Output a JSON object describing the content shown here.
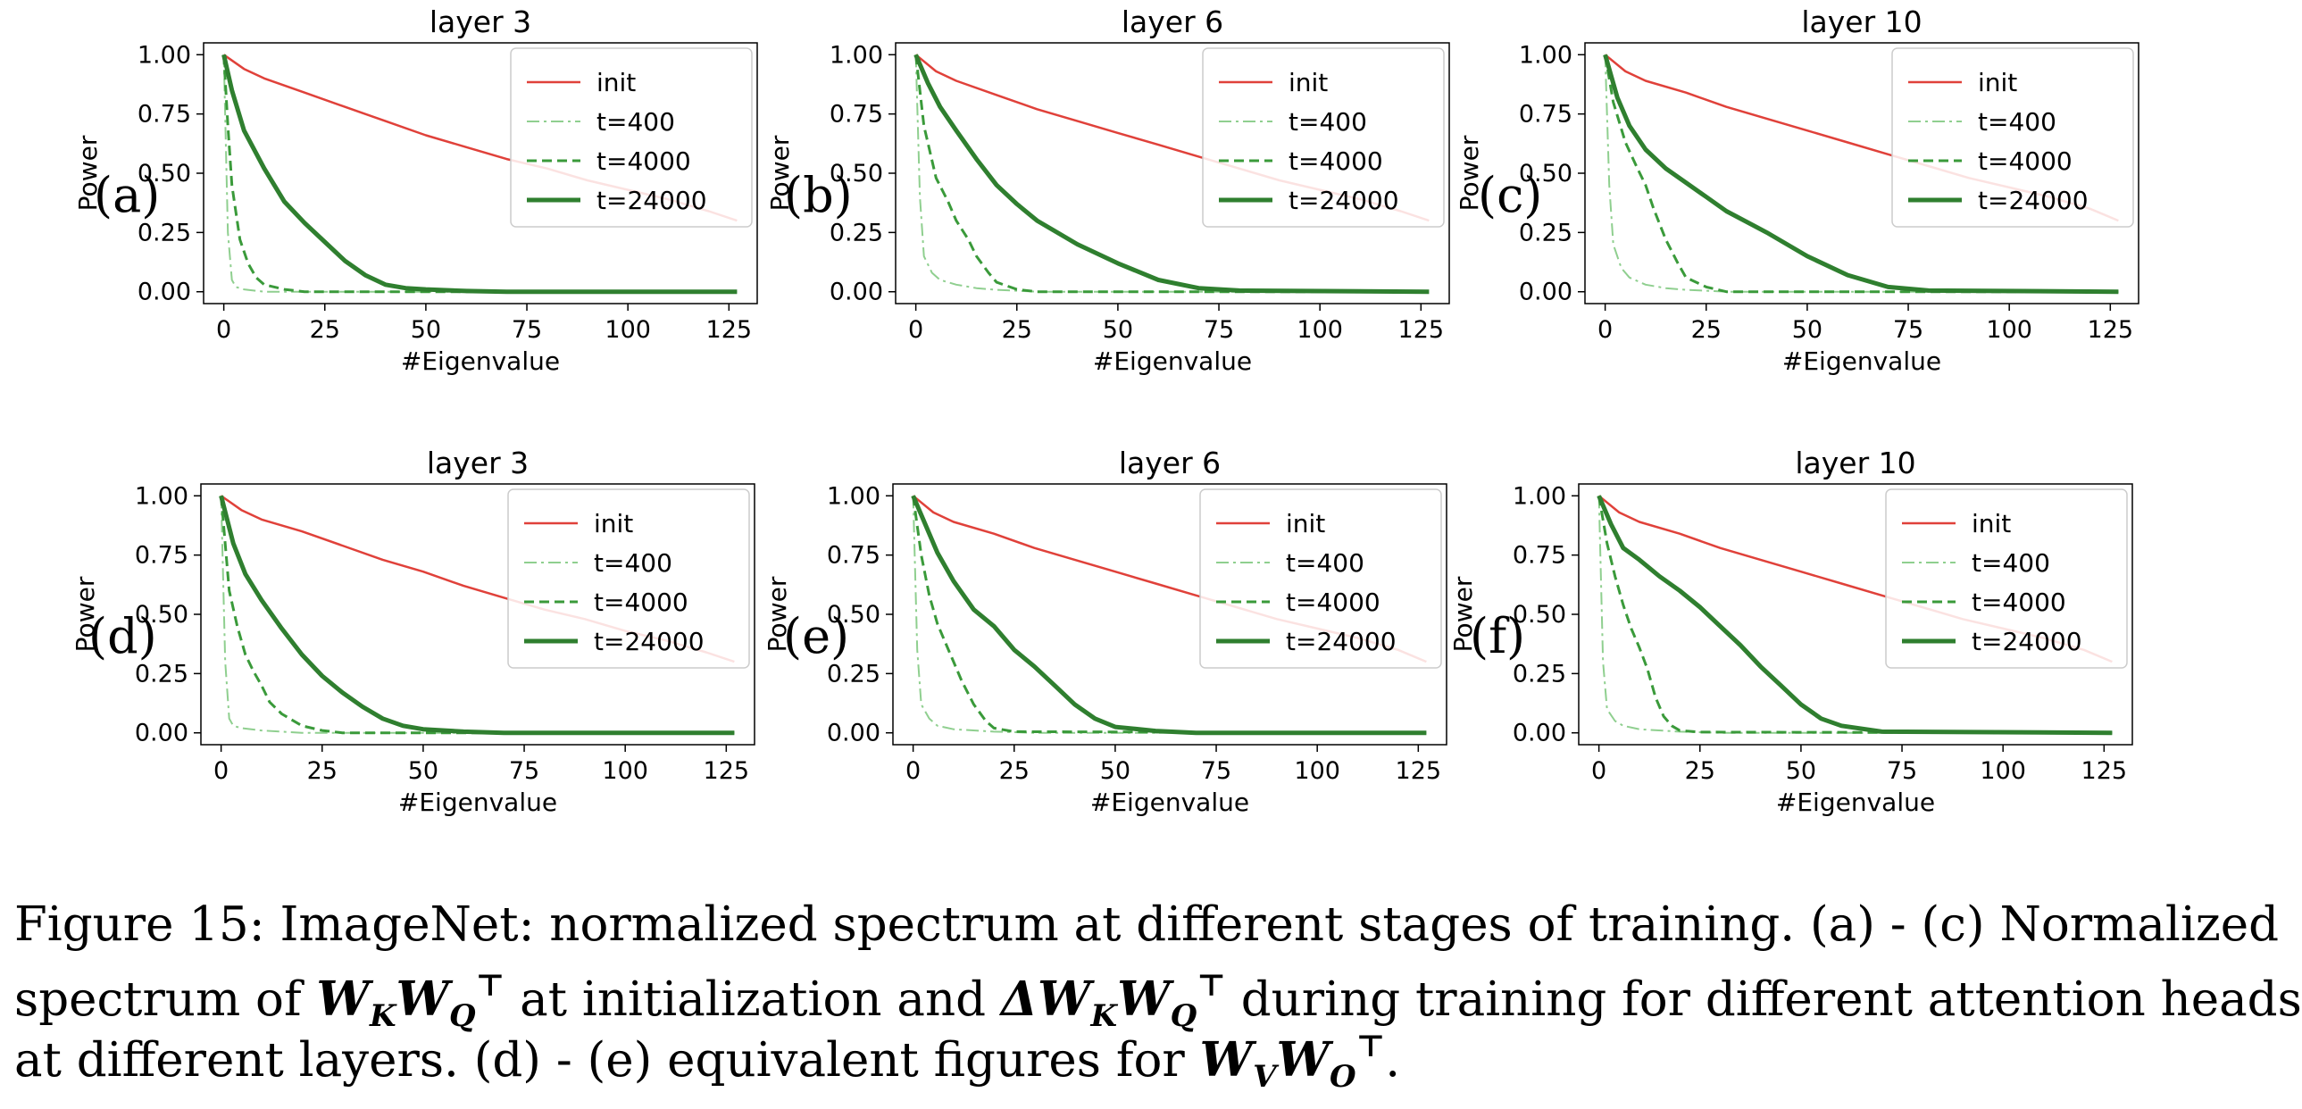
{
  "figure": {
    "panel_tags": [
      "(a)",
      "(b)",
      "(c)",
      "(d)",
      "(e)",
      "(f)"
    ],
    "caption": {
      "line1": "Figure 15: ImageNet: normalized spectrum at different stages of training. (a) - (c) Normalized",
      "line2_a": "spectrum of ",
      "line2_m1": "W",
      "line2_m1_sub": "K",
      "line2_m2": "W",
      "line2_m2_sub": "Q",
      "line2_m2_sup": "⊤",
      "line2_b": " at initialization and ",
      "line2_m3": "ΔW",
      "line2_m3_sub": "K",
      "line2_m4": "W",
      "line2_m4_sub": "Q",
      "line2_m4_sup": "⊤",
      "line2_c": " during training for different attention heads",
      "line3_a": "at different layers. (d) - (e) equivalent figures for ",
      "line3_m1": "W",
      "line3_m1_sub": "V",
      "line3_m2": "W",
      "line3_m2_sub": "O",
      "line3_m2_sup": "⊤",
      "line3_b": "."
    }
  },
  "colors": {
    "init": "#e0413a",
    "t400": "#8fcf8f",
    "t4000": "#3a9a3a",
    "t24000": "#2f7f2f"
  },
  "chart_data": [
    {
      "type": "line",
      "title": "layer 3",
      "xlabel": "#Eigenvalue",
      "ylabel": "Power",
      "xlim": [
        -5,
        132
      ],
      "ylim": [
        -0.05,
        1.05
      ],
      "xticks": [
        0,
        25,
        50,
        75,
        100,
        125
      ],
      "yticks": [
        "0.00",
        "0.25",
        "0.50",
        "0.75",
        "1.00"
      ],
      "legend_position": "upper right",
      "series": [
        {
          "name": "init",
          "x": [
            0,
            5,
            10,
            20,
            30,
            40,
            50,
            60,
            70,
            80,
            90,
            100,
            110,
            120,
            127
          ],
          "values": [
            1.0,
            0.94,
            0.9,
            0.84,
            0.78,
            0.72,
            0.66,
            0.61,
            0.56,
            0.52,
            0.47,
            0.43,
            0.39,
            0.34,
            0.3
          ]
        },
        {
          "name": "t=400",
          "x": [
            0,
            1,
            2,
            3,
            5,
            10,
            20,
            127
          ],
          "values": [
            1.0,
            0.25,
            0.05,
            0.02,
            0.01,
            0.0,
            0.0,
            0.0
          ]
        },
        {
          "name": "t=4000",
          "x": [
            0,
            1,
            2,
            4,
            6,
            8,
            10,
            15,
            20,
            30,
            127
          ],
          "values": [
            1.0,
            0.7,
            0.45,
            0.22,
            0.12,
            0.06,
            0.03,
            0.01,
            0.0,
            0.0,
            0.0
          ]
        },
        {
          "name": "t=24000",
          "x": [
            0,
            2,
            5,
            10,
            15,
            20,
            25,
            30,
            35,
            40,
            45,
            50,
            60,
            70,
            127
          ],
          "values": [
            1.0,
            0.85,
            0.68,
            0.52,
            0.38,
            0.29,
            0.21,
            0.13,
            0.07,
            0.03,
            0.015,
            0.01,
            0.003,
            0.0,
            0.0
          ]
        }
      ]
    },
    {
      "type": "line",
      "title": "layer 6",
      "xlabel": "#Eigenvalue",
      "ylabel": "Power",
      "xlim": [
        -5,
        132
      ],
      "ylim": [
        -0.05,
        1.05
      ],
      "xticks": [
        0,
        25,
        50,
        75,
        100,
        125
      ],
      "yticks": [
        "0.00",
        "0.25",
        "0.50",
        "0.75",
        "1.00"
      ],
      "legend_position": "upper right",
      "series": [
        {
          "name": "init",
          "x": [
            0,
            5,
            10,
            20,
            30,
            40,
            50,
            60,
            70,
            80,
            90,
            100,
            110,
            120,
            127
          ],
          "values": [
            1.0,
            0.93,
            0.89,
            0.83,
            0.77,
            0.72,
            0.67,
            0.62,
            0.57,
            0.52,
            0.47,
            0.43,
            0.39,
            0.34,
            0.3
          ]
        },
        {
          "name": "t=400",
          "x": [
            0,
            1,
            2,
            4,
            6,
            10,
            15,
            20,
            30,
            127
          ],
          "values": [
            1.0,
            0.4,
            0.15,
            0.08,
            0.05,
            0.03,
            0.015,
            0.008,
            0.0,
            0.0
          ]
        },
        {
          "name": "t=4000",
          "x": [
            0,
            2,
            5,
            8,
            10,
            13,
            15,
            18,
            20,
            25,
            30,
            127
          ],
          "values": [
            1.0,
            0.7,
            0.48,
            0.38,
            0.3,
            0.22,
            0.15,
            0.08,
            0.04,
            0.01,
            0.0,
            0.0
          ]
        },
        {
          "name": "t=24000",
          "x": [
            0,
            3,
            6,
            10,
            15,
            20,
            25,
            30,
            40,
            50,
            60,
            70,
            80,
            127
          ],
          "values": [
            1.0,
            0.88,
            0.78,
            0.68,
            0.56,
            0.45,
            0.37,
            0.3,
            0.2,
            0.12,
            0.05,
            0.015,
            0.005,
            0.0
          ]
        }
      ]
    },
    {
      "type": "line",
      "title": "layer 10",
      "xlabel": "#Eigenvalue",
      "ylabel": "Power",
      "xlim": [
        -5,
        132
      ],
      "ylim": [
        -0.05,
        1.05
      ],
      "xticks": [
        0,
        25,
        50,
        75,
        100,
        125
      ],
      "yticks": [
        "0.00",
        "0.25",
        "0.50",
        "0.75",
        "1.00"
      ],
      "legend_position": "upper right",
      "series": [
        {
          "name": "init",
          "x": [
            0,
            5,
            10,
            20,
            30,
            40,
            50,
            60,
            70,
            80,
            90,
            100,
            110,
            120,
            127
          ],
          "values": [
            1.0,
            0.93,
            0.89,
            0.84,
            0.78,
            0.73,
            0.68,
            0.63,
            0.58,
            0.53,
            0.48,
            0.44,
            0.4,
            0.35,
            0.3
          ]
        },
        {
          "name": "t=400",
          "x": [
            0,
            1,
            2,
            4,
            6,
            10,
            15,
            20,
            30,
            127
          ],
          "values": [
            1.0,
            0.45,
            0.2,
            0.1,
            0.06,
            0.03,
            0.015,
            0.008,
            0.0,
            0.0
          ]
        },
        {
          "name": "t=4000",
          "x": [
            0,
            2,
            5,
            8,
            10,
            12,
            15,
            18,
            20,
            25,
            30,
            127
          ],
          "values": [
            1.0,
            0.8,
            0.63,
            0.52,
            0.45,
            0.35,
            0.22,
            0.12,
            0.06,
            0.02,
            0.0,
            0.0
          ]
        },
        {
          "name": "t=24000",
          "x": [
            0,
            3,
            6,
            10,
            15,
            20,
            25,
            30,
            40,
            50,
            60,
            70,
            80,
            127
          ],
          "values": [
            1.0,
            0.82,
            0.7,
            0.6,
            0.52,
            0.46,
            0.4,
            0.34,
            0.25,
            0.15,
            0.07,
            0.02,
            0.005,
            0.0
          ]
        }
      ]
    },
    {
      "type": "line",
      "title": "layer 3",
      "xlabel": "#Eigenvalue",
      "ylabel": "Power",
      "xlim": [
        -5,
        132
      ],
      "ylim": [
        -0.05,
        1.05
      ],
      "xticks": [
        0,
        25,
        50,
        75,
        100,
        125
      ],
      "yticks": [
        "0.00",
        "0.25",
        "0.50",
        "0.75",
        "1.00"
      ],
      "legend_position": "upper right",
      "series": [
        {
          "name": "init",
          "x": [
            0,
            5,
            10,
            20,
            30,
            40,
            50,
            60,
            70,
            80,
            90,
            100,
            110,
            120,
            127
          ],
          "values": [
            1.0,
            0.94,
            0.9,
            0.85,
            0.79,
            0.73,
            0.68,
            0.62,
            0.57,
            0.52,
            0.48,
            0.43,
            0.39,
            0.34,
            0.3
          ]
        },
        {
          "name": "t=400",
          "x": [
            0,
            1,
            2,
            3,
            5,
            10,
            20,
            127
          ],
          "values": [
            1.0,
            0.3,
            0.06,
            0.03,
            0.02,
            0.01,
            0.0,
            0.0
          ]
        },
        {
          "name": "t=4000",
          "x": [
            0,
            2,
            4,
            6,
            8,
            10,
            12,
            15,
            20,
            25,
            30,
            127
          ],
          "values": [
            1.0,
            0.6,
            0.45,
            0.33,
            0.26,
            0.2,
            0.13,
            0.08,
            0.03,
            0.01,
            0.0,
            0.0
          ]
        },
        {
          "name": "t=24000",
          "x": [
            0,
            3,
            6,
            10,
            15,
            20,
            25,
            30,
            35,
            40,
            45,
            50,
            60,
            70,
            127
          ],
          "values": [
            1.0,
            0.8,
            0.67,
            0.56,
            0.44,
            0.33,
            0.24,
            0.17,
            0.11,
            0.06,
            0.03,
            0.015,
            0.005,
            0.0,
            0.0
          ]
        }
      ]
    },
    {
      "type": "line",
      "title": "layer 6",
      "xlabel": "#Eigenvalue",
      "ylabel": "Power",
      "xlim": [
        -5,
        132
      ],
      "ylim": [
        -0.05,
        1.05
      ],
      "xticks": [
        0,
        25,
        50,
        75,
        100,
        125
      ],
      "yticks": [
        "0.00",
        "0.25",
        "0.50",
        "0.75",
        "1.00"
      ],
      "legend_position": "upper right",
      "series": [
        {
          "name": "init",
          "x": [
            0,
            5,
            10,
            20,
            30,
            40,
            50,
            60,
            70,
            80,
            90,
            100,
            110,
            120,
            127
          ],
          "values": [
            1.0,
            0.93,
            0.89,
            0.84,
            0.78,
            0.73,
            0.68,
            0.63,
            0.58,
            0.53,
            0.48,
            0.44,
            0.4,
            0.35,
            0.3
          ]
        },
        {
          "name": "t=400",
          "x": [
            0,
            1,
            2,
            4,
            6,
            10,
            20,
            30,
            127
          ],
          "values": [
            1.0,
            0.35,
            0.12,
            0.06,
            0.03,
            0.015,
            0.005,
            0.0,
            0.0
          ]
        },
        {
          "name": "t=4000",
          "x": [
            0,
            2,
            4,
            6,
            8,
            10,
            12,
            15,
            18,
            20,
            25,
            127
          ],
          "values": [
            1.0,
            0.75,
            0.58,
            0.46,
            0.38,
            0.3,
            0.22,
            0.12,
            0.05,
            0.02,
            0.005,
            0.0
          ]
        },
        {
          "name": "t=24000",
          "x": [
            0,
            3,
            6,
            10,
            15,
            20,
            25,
            30,
            35,
            40,
            45,
            50,
            60,
            70,
            127
          ],
          "values": [
            1.0,
            0.88,
            0.76,
            0.64,
            0.52,
            0.45,
            0.35,
            0.28,
            0.2,
            0.12,
            0.06,
            0.025,
            0.008,
            0.0,
            0.0
          ]
        }
      ]
    },
    {
      "type": "line",
      "title": "layer 10",
      "xlabel": "#Eigenvalue",
      "ylabel": "Power",
      "xlim": [
        -5,
        132
      ],
      "ylim": [
        -0.05,
        1.05
      ],
      "xticks": [
        0,
        25,
        50,
        75,
        100,
        125
      ],
      "yticks": [
        "0.00",
        "0.25",
        "0.50",
        "0.75",
        "1.00"
      ],
      "legend_position": "upper right",
      "series": [
        {
          "name": "init",
          "x": [
            0,
            5,
            10,
            20,
            30,
            40,
            50,
            60,
            70,
            80,
            90,
            100,
            110,
            120,
            127
          ],
          "values": [
            1.0,
            0.93,
            0.89,
            0.84,
            0.78,
            0.73,
            0.68,
            0.63,
            0.58,
            0.53,
            0.48,
            0.44,
            0.4,
            0.35,
            0.3
          ]
        },
        {
          "name": "t=400",
          "x": [
            0,
            1,
            2,
            4,
            6,
            10,
            20,
            30,
            127
          ],
          "values": [
            1.0,
            0.3,
            0.1,
            0.05,
            0.03,
            0.015,
            0.005,
            0.0,
            0.0
          ]
        },
        {
          "name": "t=4000",
          "x": [
            0,
            2,
            4,
            6,
            8,
            10,
            12,
            14,
            16,
            18,
            20,
            25,
            127
          ],
          "values": [
            1.0,
            0.8,
            0.66,
            0.54,
            0.44,
            0.36,
            0.27,
            0.15,
            0.07,
            0.03,
            0.01,
            0.003,
            0.0
          ]
        },
        {
          "name": "t=24000",
          "x": [
            0,
            3,
            6,
            10,
            15,
            20,
            25,
            30,
            35,
            40,
            45,
            50,
            55,
            60,
            70,
            127
          ],
          "values": [
            1.0,
            0.88,
            0.78,
            0.73,
            0.66,
            0.6,
            0.53,
            0.45,
            0.37,
            0.28,
            0.2,
            0.12,
            0.06,
            0.03,
            0.005,
            0.0
          ]
        }
      ]
    }
  ]
}
